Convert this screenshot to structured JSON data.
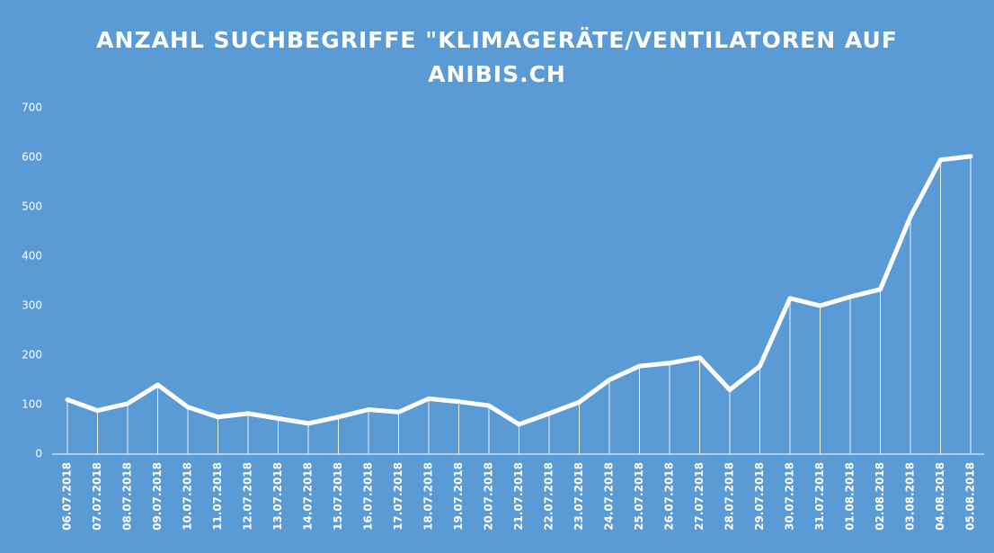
{
  "chart_data": {
    "type": "line",
    "title": "ANZAHL SUCHBEGRIFFE \"KLIMAGERÄTE/VENTILATOREN AUF ANIBIS.CH",
    "categories": [
      "06.07.2018",
      "07.07.2018",
      "08.07.2018",
      "09.07.2018",
      "10.07.2018",
      "11.07.2018",
      "12.07.2018",
      "13.07.2018",
      "14.07.2018",
      "15.07.2018",
      "16.07.2018",
      "17.07.2018",
      "18.07.2018",
      "19.07.2018",
      "20.07.2018",
      "21.07.2018",
      "22.07.2018",
      "23.07.2018",
      "24.07.2018",
      "25.07.2018",
      "26.07.2018",
      "27.07.2018",
      "28.07.2018",
      "29.07.2018",
      "30.07.2018",
      "31.07.2018",
      "01.08.2018",
      "02.08.2018",
      "03.08.2018",
      "04.08.2018",
      "05.08.2018"
    ],
    "values": [
      110,
      88,
      102,
      140,
      95,
      75,
      82,
      72,
      62,
      75,
      90,
      85,
      112,
      106,
      98,
      60,
      82,
      105,
      150,
      178,
      184,
      195,
      130,
      178,
      315,
      300,
      318,
      333,
      480,
      595,
      602
    ],
    "color": "#ffffff",
    "ylim": [
      0,
      700
    ],
    "yticks": [
      0,
      100,
      200,
      300,
      400,
      500,
      600,
      700
    ],
    "grid": false
  }
}
